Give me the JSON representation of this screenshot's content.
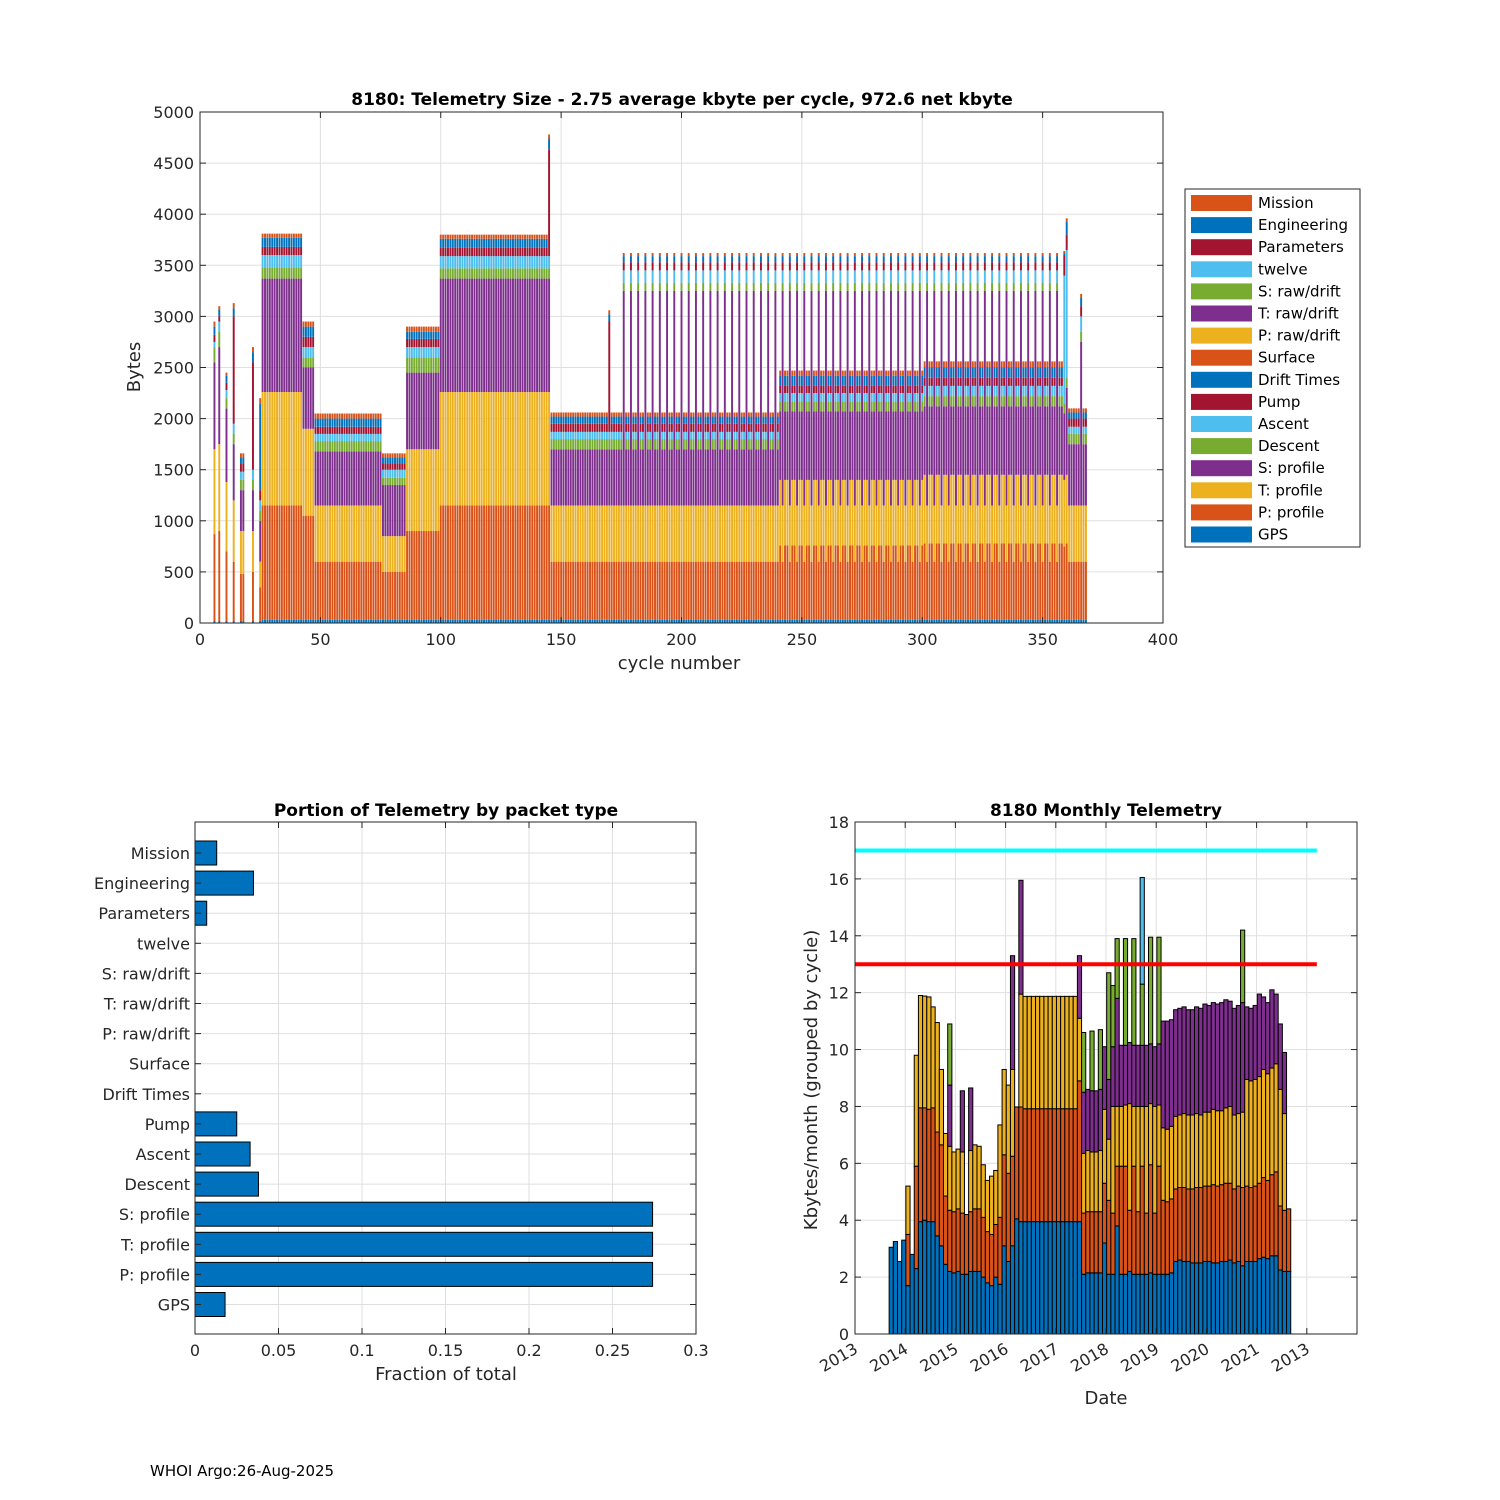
{
  "footer": "WHOI Argo:26-Aug-2025",
  "chart_data": [
    {
      "type": "bar",
      "stacked": true,
      "title": "8180: Telemetry Size - 2.75 average kbyte per cycle,  972.6 net kbyte",
      "xlabel": "cycle number",
      "ylabel": "Bytes",
      "xlim": [
        0,
        400
      ],
      "ylim": [
        0,
        5000
      ],
      "xticks": [
        0,
        50,
        100,
        150,
        200,
        250,
        300,
        350,
        400
      ],
      "yticks": [
        0,
        500,
        1000,
        1500,
        2000,
        2500,
        3000,
        3500,
        4000,
        4500,
        5000
      ],
      "grid": true,
      "legend_position": "right",
      "legend": [
        {
          "name": "Mission",
          "color": "#D95319"
        },
        {
          "name": "Engineering",
          "color": "#0072BD"
        },
        {
          "name": "Parameters",
          "color": "#A2142F"
        },
        {
          "name": "twelve",
          "color": "#4DBEEE"
        },
        {
          "name": "S: raw/drift",
          "color": "#77AC30"
        },
        {
          "name": "T: raw/drift",
          "color": "#7E2F8E"
        },
        {
          "name": "P: raw/drift",
          "color": "#EDB120"
        },
        {
          "name": "Surface",
          "color": "#D95319"
        },
        {
          "name": "Drift Times",
          "color": "#0072BD"
        },
        {
          "name": "Pump",
          "color": "#A2142F"
        },
        {
          "name": "Ascent",
          "color": "#4DBEEE"
        },
        {
          "name": "Descent",
          "color": "#77AC30"
        },
        {
          "name": "S: profile",
          "color": "#7E2F8E"
        },
        {
          "name": "T: profile",
          "color": "#EDB120"
        },
        {
          "name": "P: profile",
          "color": "#D95319"
        },
        {
          "name": "GPS",
          "color": "#0072BD"
        }
      ],
      "stack_order": [
        "GPS",
        "P: profile",
        "T: profile",
        "S: profile",
        "Descent",
        "Ascent",
        "Pump",
        "Drift Times",
        "Surface"
      ],
      "stack_colors": [
        "#0072BD",
        "#D95319",
        "#EDB120",
        "#7E2F8E",
        "#77AC30",
        "#4DBEEE",
        "#A2142F",
        "#0072BD",
        "#D95319"
      ],
      "value_note": "cumulative stack tops in bytes per cycle, applied over cycle ranges",
      "segments": [
        {
          "from": 6,
          "to": 6,
          "step": 1,
          "tops": [
            20,
            870,
            1700,
            2550,
            2700,
            2750,
            2820,
            2900,
            2950
          ]
        },
        {
          "from": 8,
          "to": 8,
          "step": 1,
          "tops": [
            20,
            900,
            1750,
            2700,
            2850,
            2950,
            3000,
            3070,
            3100
          ]
        },
        {
          "from": 11,
          "to": 11,
          "step": 1,
          "tops": [
            20,
            700,
            1380,
            2100,
            2200,
            2280,
            2350,
            2420,
            2450
          ]
        },
        {
          "from": 14,
          "to": 14,
          "step": 1,
          "tops": [
            20,
            600,
            1200,
            1750,
            1850,
            1950,
            3000,
            3080,
            3130
          ]
        },
        {
          "from": 17,
          "to": 18,
          "step": 1,
          "tops": [
            20,
            480,
            900,
            1300,
            1400,
            1480,
            1560,
            1620,
            1660
          ]
        },
        {
          "from": 22,
          "to": 22,
          "step": 1,
          "tops": [
            20,
            500,
            900,
            1300,
            1400,
            1500,
            2550,
            2650,
            2700
          ]
        },
        {
          "from": 25,
          "to": 25,
          "step": 1,
          "tops": [
            20,
            350,
            600,
            1000,
            1100,
            1200,
            1300,
            2150,
            2200
          ]
        },
        {
          "from": 26,
          "to": 42,
          "step": 1,
          "tops": [
            30,
            1150,
            2260,
            3370,
            3480,
            3600,
            3680,
            3770,
            3810
          ]
        },
        {
          "from": 43,
          "to": 47,
          "step": 1,
          "tops": [
            30,
            1050,
            1900,
            2500,
            2600,
            2700,
            2800,
            2900,
            2950
          ]
        },
        {
          "from": 48,
          "to": 75,
          "step": 1,
          "tops": [
            30,
            600,
            1150,
            1680,
            1780,
            1850,
            1920,
            2000,
            2050
          ]
        },
        {
          "from": 76,
          "to": 85,
          "step": 1,
          "tops": [
            30,
            500,
            850,
            1350,
            1420,
            1500,
            1560,
            1620,
            1660
          ]
        },
        {
          "from": 86,
          "to": 99,
          "step": 1,
          "tops": [
            30,
            900,
            1700,
            2450,
            2600,
            2700,
            2780,
            2850,
            2900
          ]
        },
        {
          "from": 100,
          "to": 144,
          "step": 1,
          "tops": [
            30,
            1150,
            2260,
            3370,
            3470,
            3590,
            3670,
            3760,
            3800
          ]
        },
        {
          "from": 145,
          "to": 145,
          "step": 1,
          "tops": [
            30,
            1150,
            2260,
            3370,
            3470,
            3590,
            4630,
            4740,
            4780
          ]
        },
        {
          "from": 146,
          "to": 240,
          "step": 1,
          "tops": [
            30,
            600,
            1150,
            1700,
            1800,
            1870,
            1950,
            2020,
            2060
          ]
        },
        {
          "from": 241,
          "to": 300,
          "step": 1,
          "tops": [
            30,
            760,
            1400,
            2070,
            2170,
            2250,
            2320,
            2420,
            2470
          ]
        },
        {
          "from": 301,
          "to": 358,
          "step": 1,
          "tops": [
            30,
            780,
            1450,
            2120,
            2220,
            2320,
            2400,
            2500,
            2560
          ]
        },
        {
          "from": 170,
          "to": 170,
          "step": 1,
          "tops": [
            30,
            600,
            1150,
            1700,
            1800,
            1870,
            2950,
            3020,
            3060
          ]
        },
        {
          "from": 176,
          "to": 356,
          "step": 3,
          "tops": [
            30,
            600,
            1150,
            3250,
            3330,
            3450,
            3530,
            3590,
            3620
          ]
        },
        {
          "from": 359,
          "to": 359,
          "step": 1,
          "tops": [
            30,
            750,
            1400,
            2050,
            2150,
            3400,
            3600,
            3620,
            3640
          ]
        },
        {
          "from": 360,
          "to": 360,
          "step": 1,
          "tops": [
            30,
            780,
            1450,
            2300,
            2400,
            3650,
            3800,
            3930,
            3960
          ]
        },
        {
          "from": 361,
          "to": 368,
          "step": 1,
          "tops": [
            30,
            600,
            1150,
            1750,
            1850,
            1920,
            2000,
            2060,
            2100
          ]
        },
        {
          "from": 366,
          "to": 366,
          "step": 1,
          "tops": [
            30,
            600,
            1150,
            2750,
            2850,
            3000,
            3100,
            3180,
            3220
          ]
        }
      ]
    },
    {
      "type": "bar",
      "orientation": "horizontal",
      "title": "Portion of Telemetry by packet type",
      "xlabel": "Fraction of total",
      "xlim": [
        0,
        0.3
      ],
      "xticks": [
        "0",
        "0.05",
        "0.1",
        "0.15",
        "0.2",
        "0.25",
        "0.3"
      ],
      "grid": true,
      "color": "#0072BD",
      "categories": [
        "Mission",
        "Engineering",
        "Parameters",
        "twelve",
        "S: raw/drift",
        "T: raw/drift",
        "P: raw/drift",
        "Surface",
        "Drift Times",
        "Pump",
        "Ascent",
        "Descent",
        "S: profile",
        "T: profile",
        "P: profile",
        "GPS"
      ],
      "values": [
        0.013,
        0.035,
        0.007,
        0,
        0,
        0,
        0,
        0,
        0,
        0.025,
        0.033,
        0.038,
        0.274,
        0.274,
        0.274,
        0.018
      ]
    },
    {
      "type": "bar",
      "stacked": true,
      "title": "8180 Monthly Telemetry",
      "xlabel": "Date",
      "ylabel": "Kbytes/month (grouped by cycle)",
      "xlim": [
        2013,
        2023
      ],
      "ylim": [
        0,
        18
      ],
      "yticks": [
        0,
        2,
        4,
        6,
        8,
        10,
        12,
        14,
        16,
        18
      ],
      "xtick_labels": [
        "2013",
        "2014",
        "2015",
        "2016",
        "2017",
        "2018",
        "2019",
        "2020",
        "2021",
        "2013"
      ],
      "grid": true,
      "reference_lines": [
        {
          "y": 17,
          "color": "#00FFFF",
          "x_range": [
            2013,
            2022.2
          ]
        },
        {
          "y": 13,
          "color": "#FF0000",
          "x_range": [
            2013,
            2022.2
          ]
        }
      ],
      "first_month": 2013.68,
      "layer_colors": [
        "#0072BD",
        "#D95319",
        "#EDB120",
        "#7E2F8E",
        "#77AC30",
        "#4DBEEE"
      ],
      "value_note": "cumulative stack tops (kbytes) per month",
      "months": [
        [
          3.05
        ],
        [
          3.25
        ],
        [
          2.55
        ],
        [
          3.3
        ],
        [
          1.7,
          3.5,
          5.2
        ],
        [
          2.8
        ],
        [
          2.3,
          5.9,
          9.8
        ],
        [
          3.95,
          7.95,
          11.9
        ],
        [
          4.0,
          7.95,
          11.88
        ],
        [
          3.95,
          7.9,
          11.85
        ],
        [
          3.95,
          7.95,
          11.5
        ],
        [
          3.45,
          7.1,
          10.95
        ],
        [
          3.1,
          6.65,
          9.3
        ],
        [
          2.45,
          4.85,
          7.05
        ],
        [
          2.2,
          4.35,
          6.6,
          8.75,
          10.9
        ],
        [
          2.15,
          4.3,
          6.4
        ],
        [
          2.2,
          4.4,
          6.5
        ],
        [
          2.1,
          4.25,
          6.4,
          8.55
        ],
        [
          2.1,
          4.2
        ],
        [
          2.2,
          4.3,
          6.45,
          8.65
        ],
        [
          2.2,
          4.4,
          6.65
        ],
        [
          2.2,
          4.4,
          6.6
        ],
        [
          2.0,
          4.1,
          5.95
        ],
        [
          1.8,
          3.6,
          5.4
        ],
        [
          1.7,
          3.5,
          5.55
        ],
        [
          2.0,
          3.85,
          5.75
        ],
        [
          1.75,
          4.1,
          7.35
        ],
        [
          3.1,
          6.3,
          9.3
        ],
        [
          2.55,
          5.65,
          8.75
        ],
        [
          3.1,
          6.25,
          9.3,
          13.3
        ],
        [
          4.05,
          7.98,
          7.98
        ],
        [
          3.95,
          7.98,
          11.95,
          15.95
        ],
        [
          3.95,
          7.92,
          11.87
        ],
        [
          3.95,
          7.92,
          11.87
        ],
        [
          3.95,
          7.92,
          11.87
        ],
        [
          3.95,
          7.92,
          11.87
        ],
        [
          3.95,
          7.92,
          11.87
        ],
        [
          3.95,
          7.92,
          11.87
        ],
        [
          3.95,
          7.92,
          11.87
        ],
        [
          3.95,
          7.92,
          11.87
        ],
        [
          3.95,
          7.92,
          11.87
        ],
        [
          3.95,
          7.92,
          11.87
        ],
        [
          3.95,
          7.92,
          11.87
        ],
        [
          3.95,
          7.92,
          11.87
        ],
        [
          3.95,
          7.92,
          11.87
        ],
        [
          3.95,
          8.9,
          11.1,
          13.3
        ],
        [
          2.1,
          4.25,
          6.35,
          8.5,
          10.6
        ],
        [
          2.15,
          4.3,
          6.45,
          8.6
        ],
        [
          2.15,
          4.3,
          6.4,
          8.55,
          10.65
        ],
        [
          2.15,
          4.3,
          6.4,
          8.55
        ],
        [
          2.15,
          4.3,
          6.45,
          8.6,
          10.7
        ],
        [
          3.2,
          5.3,
          7.9,
          10.1
        ],
        [
          2.1,
          4.7,
          6.85,
          8.95,
          12.7
        ],
        [
          2.1,
          4.25,
          8.0,
          10.1,
          12.25
        ],
        [
          3.8,
          5.9,
          8.0,
          11.8,
          13.9
        ],
        [
          2.1,
          5.9,
          8.0,
          10.15
        ],
        [
          2.1,
          5.9,
          8.05,
          10.15,
          13.9
        ],
        [
          2.2,
          4.35,
          8.1,
          10.25
        ],
        [
          2.1,
          5.9,
          8.0,
          10.15,
          13.9
        ],
        [
          2.1,
          4.3,
          8.0,
          10.15
        ],
        [
          2.1,
          5.9,
          8.0,
          10.15,
          12.3,
          16.05
        ],
        [
          2.1,
          4.25,
          8.0,
          10.15
        ],
        [
          2.15,
          5.95,
          8.1,
          10.2,
          13.95
        ],
        [
          2.1,
          4.25,
          8.0,
          10.1
        ],
        [
          2.1,
          5.9,
          8.05,
          10.2,
          13.95
        ],
        [
          2.1,
          4.7,
          7.25,
          11.0
        ],
        [
          2.1,
          4.65,
          7.2,
          11.0
        ],
        [
          2.15,
          4.75,
          7.3,
          11.05
        ],
        [
          2.55,
          5.1,
          7.65,
          11.4
        ],
        [
          2.6,
          5.15,
          7.7,
          11.45
        ],
        [
          2.55,
          5.15,
          7.75,
          11.5
        ],
        [
          2.55,
          5.1,
          7.7,
          11.4
        ],
        [
          2.5,
          5.1,
          7.7,
          11.4
        ],
        [
          2.5,
          5.15,
          7.75,
          11.5
        ],
        [
          2.5,
          5.15,
          7.7,
          11.45
        ],
        [
          2.55,
          5.2,
          7.8,
          11.6
        ],
        [
          2.55,
          5.2,
          7.8,
          11.55
        ],
        [
          2.5,
          5.25,
          7.9,
          11.65
        ],
        [
          2.5,
          5.2,
          7.85,
          11.6
        ],
        [
          2.55,
          5.25,
          7.85,
          11.65
        ],
        [
          2.55,
          5.3,
          7.95,
          11.75
        ],
        [
          2.6,
          5.3,
          8.0,
          11.7
        ],
        [
          2.5,
          5.1,
          7.7,
          11.45
        ],
        [
          2.55,
          5.2,
          7.75,
          11.55
        ],
        [
          2.4,
          5.15,
          7.8,
          11.65,
          14.2
        ],
        [
          2.55,
          5.2,
          8.95,
          11.5
        ],
        [
          2.55,
          5.15,
          8.9,
          11.45
        ],
        [
          2.55,
          5.2,
          8.95,
          11.55
        ],
        [
          2.65,
          5.3,
          9.05,
          11.95
        ],
        [
          2.7,
          5.5,
          9.3,
          11.85
        ],
        [
          2.65,
          5.4,
          9.15,
          11.65
        ],
        [
          2.75,
          5.6,
          9.35,
          12.1
        ],
        [
          2.75,
          5.7,
          9.5,
          11.95
        ],
        [
          2.25,
          4.5,
          8.6,
          10.9
        ],
        [
          2.2,
          4.35,
          7.75,
          9.9
        ],
        [
          2.2,
          4.4
        ]
      ]
    }
  ]
}
